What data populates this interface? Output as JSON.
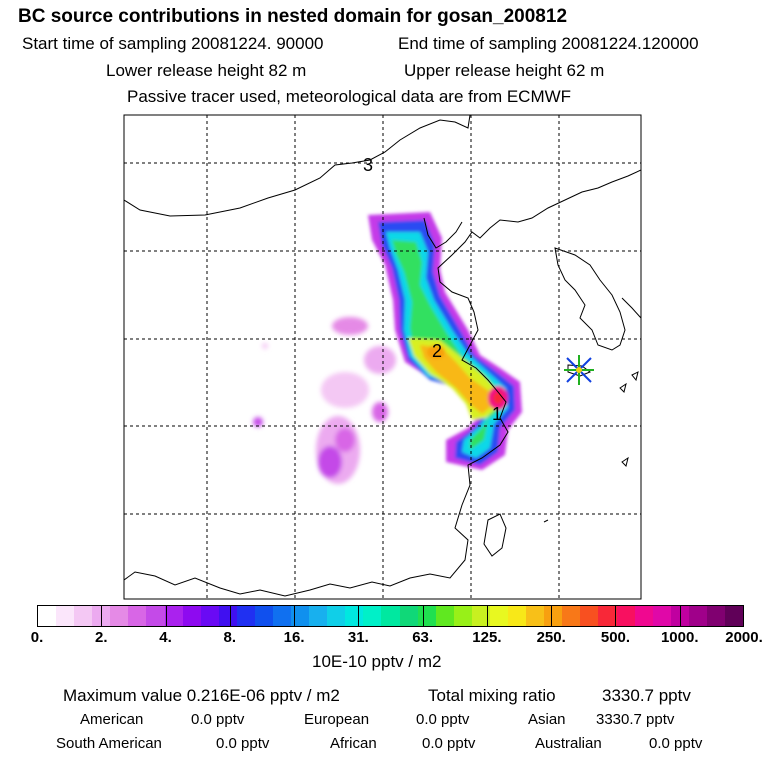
{
  "header": {
    "title": "BC  source contributions in nested domain for gosan_200812",
    "start_label": "Start time of sampling 20081224. 90000",
    "end_label": "End time of sampling 20081224.120000",
    "lower_height": "Lower release height   82 m",
    "upper_height": "Upper release height   62 m",
    "note": "Passive tracer used, meteorological data are from ECMWF"
  },
  "map": {
    "markers": [
      {
        "label": "1"
      },
      {
        "label": "2"
      },
      {
        "label": "3"
      }
    ],
    "receptor": "gosan-star"
  },
  "colorbar": {
    "ticks": [
      "0.",
      "2.",
      "4.",
      "8.",
      "16.",
      "31.",
      "63.",
      "125.",
      "250.",
      "500.",
      "1000.",
      "2000."
    ],
    "unit": "10E-10 pptv / m2",
    "colors": [
      "#ffffff",
      "#fbe6fb",
      "#f4c8f4",
      "#ecaaf0",
      "#e58ae6",
      "#d866e6",
      "#c44ae8",
      "#aa22ee",
      "#8e0af0",
      "#6a0af4",
      "#4010f0",
      "#2030f2",
      "#1050ee",
      "#1070f0",
      "#1090ee",
      "#18b0ee",
      "#10cfe8",
      "#00e8e0",
      "#00f0c8",
      "#00e8a0",
      "#10d878",
      "#20e050",
      "#60e820",
      "#98f018",
      "#c8f020",
      "#e8f820",
      "#f8e818",
      "#f8c018",
      "#f8a010",
      "#f87818",
      "#f85020",
      "#f82838",
      "#f81060",
      "#f00890",
      "#e008a8",
      "#c000a0",
      "#a0008a",
      "#800070",
      "#600058"
    ]
  },
  "footer": {
    "max_label": "Maximum value  0.216E-06 pptv / m2",
    "total_label": "Total mixing ratio",
    "total_value": "3330.7 pptv",
    "american_label": "American",
    "american_value": "0.0 pptv",
    "european_label": "European",
    "european_value": "0.0 pptv",
    "asian_label": "Asian",
    "asian_value": "3330.7 pptv",
    "south_american_label": "South American",
    "south_american_value": "0.0 pptv",
    "african_label": "African",
    "african_value": "0.0 pptv",
    "australian_label": "Australian",
    "australian_value": "0.0 pptv"
  }
}
